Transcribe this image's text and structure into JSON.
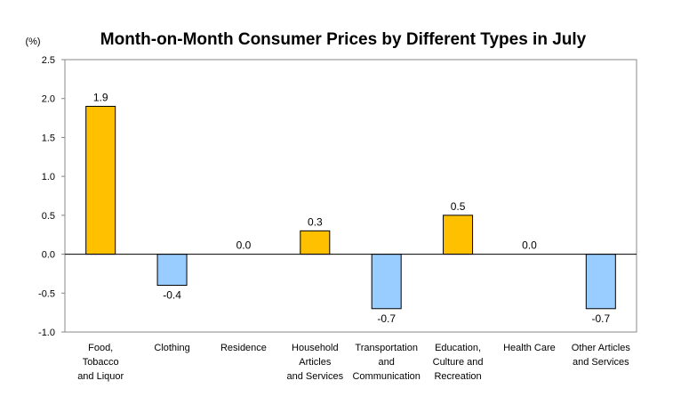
{
  "chart_data": {
    "type": "bar",
    "title": "Month-on-Month Consumer Prices by Different Types in July",
    "unit_label": "(%)",
    "xlabel": "",
    "ylabel": "",
    "ylim": [
      -1.0,
      2.5
    ],
    "yticks": [
      "2.5",
      "2.0",
      "1.5",
      "1.0",
      "0.5",
      "0.0",
      "-0.5",
      "-1.0"
    ],
    "ytick_values": [
      2.5,
      2.0,
      1.5,
      1.0,
      0.5,
      0.0,
      -0.5,
      -1.0
    ],
    "grid": false,
    "legend": "none",
    "colors": {
      "positive": "#FFC000",
      "negative": "#99CCFF",
      "outline": "#000000"
    },
    "categories": [
      [
        "Food,",
        "Tobacco",
        "and Liquor"
      ],
      [
        "Clothing"
      ],
      [
        "Residence"
      ],
      [
        "Household",
        "Articles",
        "and Services"
      ],
      [
        "Transportation",
        "and",
        "Communication"
      ],
      [
        "Education,",
        "Culture and",
        "Recreation"
      ],
      [
        "Health Care"
      ],
      [
        "Other Articles",
        "and Services"
      ]
    ],
    "values": [
      1.9,
      -0.4,
      0.0,
      0.3,
      -0.7,
      0.5,
      0.0,
      -0.7
    ],
    "data_labels": [
      "1.9",
      "-0.4",
      "0.0",
      "0.3",
      "-0.7",
      "0.5",
      "0.0",
      "-0.7"
    ]
  }
}
